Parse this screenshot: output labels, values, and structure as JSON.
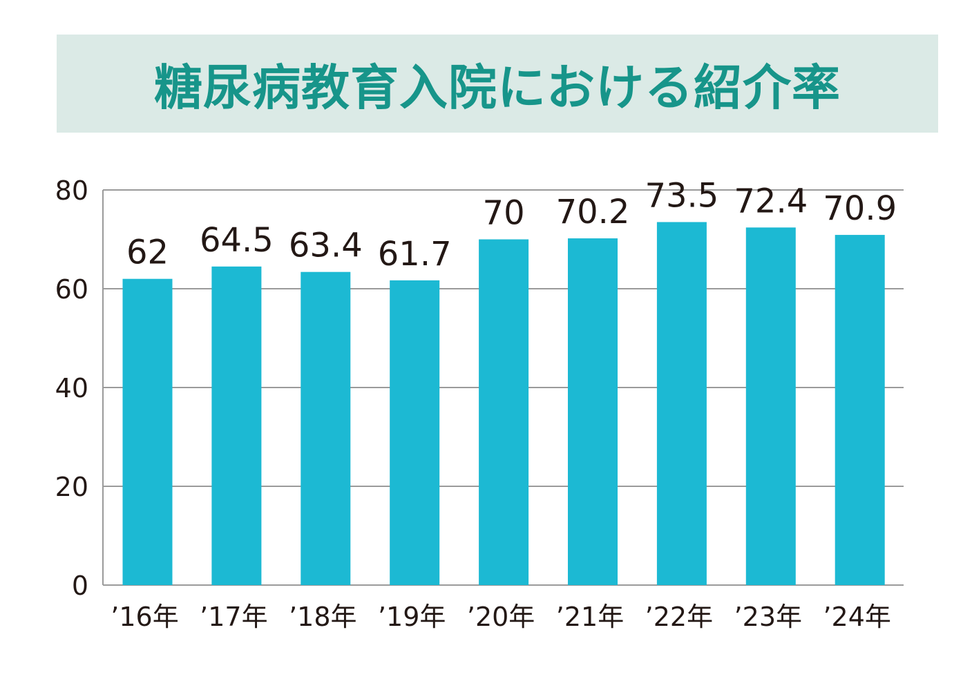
{
  "colors": {
    "bar": "#1cb9d3",
    "title": "#17958a",
    "banner": "#dbeae6",
    "grid": "#9a9a9a",
    "text": "#231815"
  },
  "chart_data": {
    "type": "bar",
    "title": "糖尿病教育入院における紹介率",
    "categories": [
      "’16年",
      "’17年",
      "’18年",
      "’19年",
      "’20年",
      "’21年",
      "’22年",
      "’23年",
      "’24年"
    ],
    "values": [
      62,
      64.5,
      63.4,
      61.7,
      70,
      70.2,
      73.5,
      72.4,
      70.9
    ],
    "value_labels": [
      "62",
      "64.5",
      "63.4",
      "61.7",
      "70",
      "70.2",
      "73.5",
      "72.4",
      "70.9"
    ],
    "yticks": [
      0,
      20,
      40,
      60,
      80
    ],
    "ylim": [
      0,
      80
    ],
    "xlabel": "",
    "ylabel": "",
    "grid": true,
    "legend": "none"
  }
}
